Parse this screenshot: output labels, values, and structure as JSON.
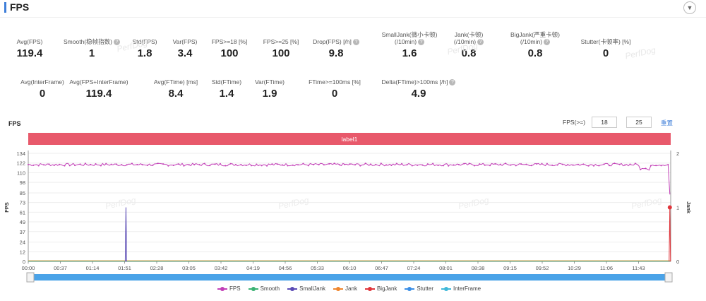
{
  "header": {
    "title": "FPS",
    "collapse_icon": "chevron-down-icon"
  },
  "metrics_row1": [
    {
      "label": "Avg(FPS)",
      "value": "119.4",
      "help": false
    },
    {
      "label": "Smooth(稳帧指数)",
      "value": "1",
      "help": true
    },
    {
      "label": "Std(FPS)",
      "value": "1.8",
      "help": false
    },
    {
      "label": "Var(FPS)",
      "value": "3.4",
      "help": false
    },
    {
      "label": "FPS>=18 [%]",
      "value": "100",
      "help": false
    },
    {
      "label": "FPS>=25 [%]",
      "value": "100",
      "help": false
    },
    {
      "label": "Drop(FPS) [/h]",
      "value": "9.8",
      "help": true
    },
    {
      "label": "SmallJank(微小卡顿)",
      "label2": "(/10min)",
      "value": "1.6",
      "help": true
    },
    {
      "label": "Jank(卡顿)",
      "label2": "(/10min)",
      "value": "0.8",
      "help": true
    },
    {
      "label": "BigJank(严重卡顿)",
      "label2": "(/10min)",
      "value": "0.8",
      "help": true
    },
    {
      "label": "Stutter(卡顿率) [%]",
      "value": "0",
      "help": false
    }
  ],
  "metrics_row2": [
    {
      "label": "Avg(InterFrame)",
      "value": "0",
      "help": false
    },
    {
      "label": "Avg(FPS+InterFrame)",
      "value": "119.4",
      "help": false
    },
    {
      "label": "Avg(FTime) [ms]",
      "value": "8.4",
      "help": false
    },
    {
      "label": "Std(FTime)",
      "value": "1.4",
      "help": false
    },
    {
      "label": "Var(FTime)",
      "value": "1.9",
      "help": false
    },
    {
      "label": "FTime>=100ms [%]",
      "value": "0",
      "help": false
    },
    {
      "label": "Delta(FTime)>100ms [/h]",
      "value": "4.9",
      "help": true
    }
  ],
  "watermark": "PerfDog",
  "controls": {
    "threshold_label": "FPS(>=)",
    "threshold_1": "18",
    "threshold_2": "25",
    "reset_label": "重置"
  },
  "chart_data": {
    "type": "line",
    "title": "FPS",
    "band_label": "label1",
    "ylabel": "FPS",
    "ylabel_right": "Jank",
    "y_ticks": [
      0,
      12,
      24,
      37,
      49,
      61,
      73,
      85,
      98,
      110,
      122,
      134
    ],
    "y_right_ticks": [
      0,
      1,
      2
    ],
    "ylim": [
      0,
      134
    ],
    "ylim_right": [
      0,
      2
    ],
    "x_ticks": [
      "00:00",
      "00:37",
      "01:14",
      "01:51",
      "02:28",
      "03:05",
      "03:42",
      "04:19",
      "04:56",
      "05:33",
      "06:10",
      "06:47",
      "07:24",
      "08:01",
      "08:38",
      "09:15",
      "09:52",
      "10:29",
      "11:06",
      "11:43"
    ],
    "x_range_seconds": [
      0,
      743
    ],
    "series": [
      {
        "name": "FPS",
        "color": "#c23fb7",
        "baseline": 120,
        "values_note_points": [
          [
            0,
            119
          ],
          [
            700,
            118
          ],
          [
            712,
            113
          ],
          [
            725,
            119
          ],
          [
            740,
            120
          ],
          [
            742,
            83
          ]
        ]
      },
      {
        "name": "Smooth",
        "color": "#3bb273",
        "values": []
      },
      {
        "name": "SmallJank",
        "color": "#5b4bb5",
        "spike_at_seconds": [
          [
            113,
            1
          ]
        ]
      },
      {
        "name": "Jank",
        "color": "#f0862d",
        "spike_at_seconds": []
      },
      {
        "name": "BigJank",
        "color": "#e0353b",
        "spike_at_seconds": [
          [
            742,
            1
          ]
        ]
      },
      {
        "name": "Stutter",
        "color": "#3a8ee6",
        "values": []
      },
      {
        "name": "InterFrame",
        "color": "#3fb8d9",
        "values": []
      }
    ],
    "grid": true,
    "legend_position": "bottom"
  }
}
